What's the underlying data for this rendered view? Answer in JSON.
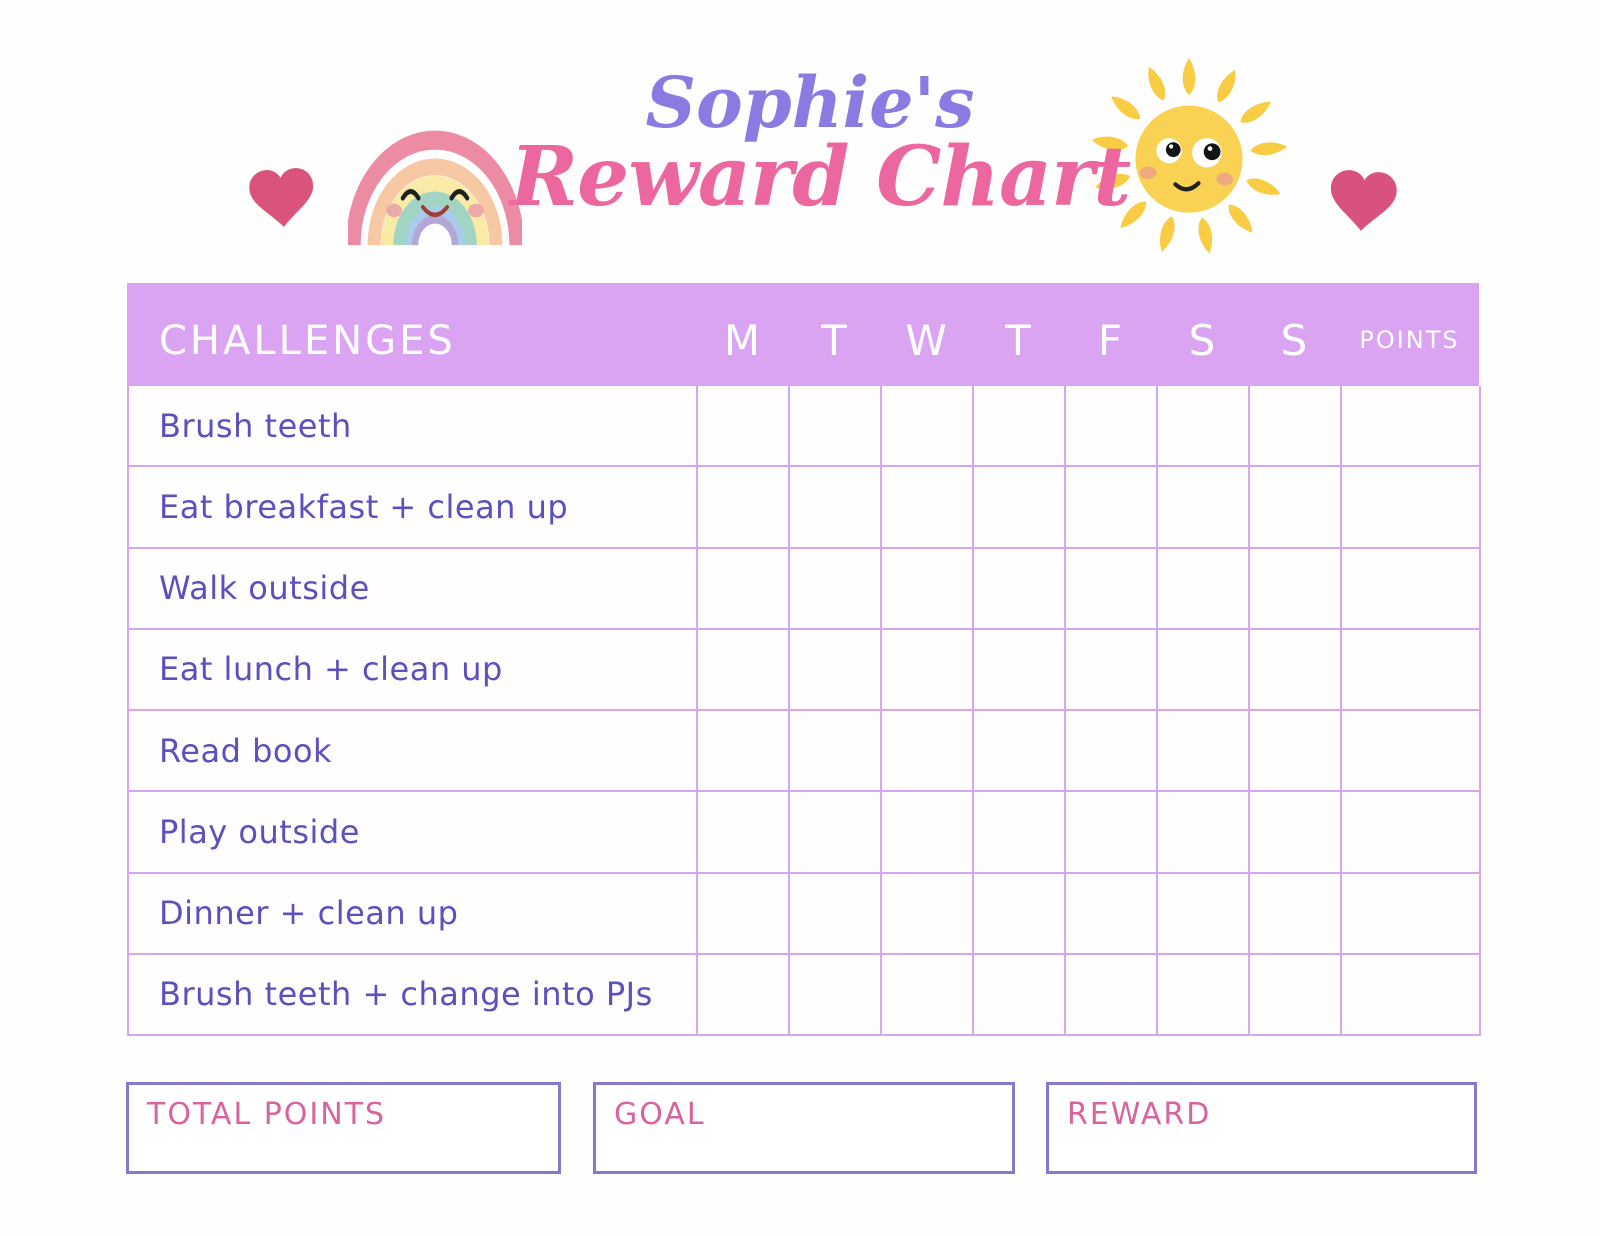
{
  "header": {
    "title_line1": "Sophie's",
    "title_line2": "Reward Chart"
  },
  "table": {
    "challenges_header": "CHALLENGES",
    "day_headers": [
      "M",
      "T",
      "W",
      "T",
      "F",
      "S",
      "S"
    ],
    "points_header": "POINTS",
    "rows": [
      {
        "label": "Brush teeth"
      },
      {
        "label": "Eat breakfast + clean up"
      },
      {
        "label": "Walk outside"
      },
      {
        "label": "Eat lunch + clean up"
      },
      {
        "label": "Read book"
      },
      {
        "label": "Play outside"
      },
      {
        "label": "Dinner + clean up"
      },
      {
        "label": "Brush teeth + change into PJs"
      }
    ]
  },
  "footer": {
    "total_points_label": "TOTAL POINTS",
    "goal_label": "GOAL",
    "reward_label": "REWARD"
  },
  "icons": {
    "left": "heart-icon",
    "rainbow": "rainbow-icon",
    "sun": "sun-icon",
    "right": "heart-icon"
  },
  "colors": {
    "header_bar": "#dba4f2",
    "grid_line": "#d7a7ee",
    "title_purple": "#8a7ae2",
    "title_pink": "#ec67a0",
    "row_text": "#5b51bd",
    "footer_label_pink": "#d8639e",
    "box_border": "#8478cf",
    "heart_pink": "#d9537b",
    "sun_yellow": "#f8cf4a"
  }
}
